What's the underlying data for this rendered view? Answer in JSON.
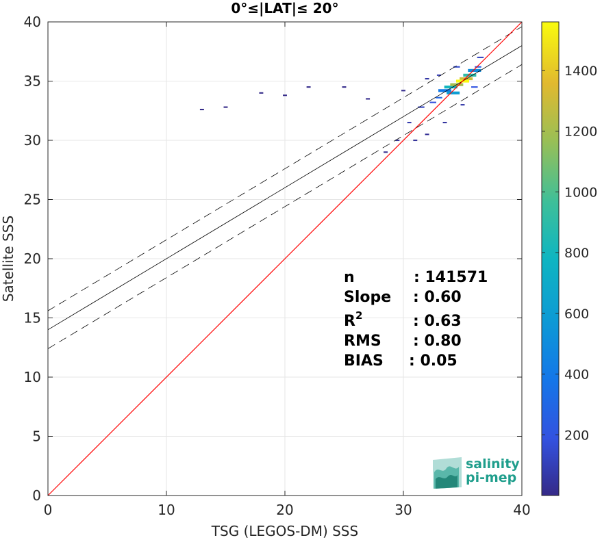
{
  "chart_data": {
    "type": "heatmap",
    "title": "0°≤|LAT|≤ 20°",
    "xlabel": "TSG (LEGOS-DM) SSS",
    "ylabel": "Satellite SSS",
    "xlim": [
      0,
      40
    ],
    "ylim": [
      0,
      40
    ],
    "xticks": [
      "0",
      "10",
      "20",
      "30",
      "40"
    ],
    "yticks": [
      "0",
      "5",
      "10",
      "15",
      "20",
      "25",
      "30",
      "35",
      "40"
    ],
    "grid": true,
    "colormap": "parula",
    "colorbar": {
      "range": [
        0,
        1560
      ],
      "ticks": [
        "200",
        "400",
        "600",
        "800",
        "1000",
        "1200",
        "1400"
      ],
      "tick_values": [
        200,
        400,
        600,
        800,
        1000,
        1200,
        1400
      ]
    },
    "lines": {
      "identity": {
        "slope": 1.0,
        "intercept": 0.0,
        "color": "#ff0000"
      },
      "regression": {
        "slope": 0.6,
        "intercept": 14.0,
        "color": "#000000"
      },
      "confidence_upper": {
        "slope": 0.6,
        "intercept": 15.6,
        "style": "dashed"
      },
      "confidence_lower": {
        "slope": 0.6,
        "intercept": 12.4,
        "style": "dashed"
      }
    },
    "density_points": [
      [
        33.5,
        34.2,
        400
      ],
      [
        34.0,
        34.5,
        800
      ],
      [
        34.5,
        34.7,
        1200
      ],
      [
        35.0,
        35.0,
        1560
      ],
      [
        35.3,
        35.2,
        1300
      ],
      [
        35.6,
        35.5,
        900
      ],
      [
        34.2,
        34.0,
        600
      ],
      [
        33.0,
        33.6,
        300
      ],
      [
        32.5,
        33.2,
        180
      ],
      [
        36.0,
        35.9,
        500
      ],
      [
        36.3,
        36.2,
        250
      ],
      [
        31.5,
        32.8,
        120
      ],
      [
        30.5,
        31.5,
        80
      ],
      [
        29.5,
        30.0,
        40
      ],
      [
        28.5,
        29.0,
        20
      ],
      [
        30.0,
        34.2,
        15
      ],
      [
        25.0,
        34.5,
        8
      ],
      [
        20.0,
        33.8,
        5
      ],
      [
        15.0,
        32.8,
        4
      ],
      [
        13.0,
        32.6,
        3
      ],
      [
        18.0,
        34.0,
        5
      ],
      [
        22.0,
        34.5,
        6
      ],
      [
        27.0,
        33.5,
        10
      ],
      [
        32.0,
        35.2,
        60
      ],
      [
        33.0,
        35.5,
        90
      ],
      [
        34.5,
        36.2,
        150
      ],
      [
        36.5,
        37.0,
        120
      ],
      [
        35.0,
        33.0,
        70
      ],
      [
        33.5,
        31.5,
        50
      ],
      [
        32.0,
        30.5,
        30
      ],
      [
        31.0,
        30.0,
        40
      ],
      [
        36.0,
        34.5,
        200
      ]
    ]
  },
  "stats": [
    {
      "label": "n",
      "value": ": 141571"
    },
    {
      "label": "Slope",
      "value": ": 0.60"
    },
    {
      "label": "R",
      "sup": "2",
      "value": ": 0.63"
    },
    {
      "label": "RMS",
      "value": ": 0.80"
    },
    {
      "label": "BIAS",
      "value": ": 0.05"
    }
  ],
  "logo": {
    "line1": "salinity",
    "line2": "pi-mep"
  }
}
